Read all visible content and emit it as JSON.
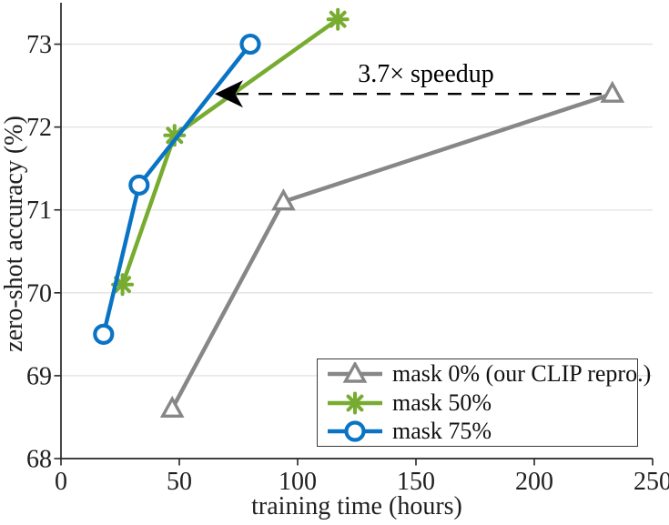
{
  "chart_data": {
    "type": "line",
    "xlabel": "training time (hours)",
    "ylabel": "zero-shot accuracy (%)",
    "xlim": [
      0,
      250
    ],
    "ylim": [
      68,
      73.5
    ],
    "xticks": [
      0,
      50,
      100,
      150,
      200,
      250
    ],
    "yticks": [
      68,
      69,
      70,
      71,
      72,
      73
    ],
    "grid": "horizontal-only",
    "legend_position": "lower-right",
    "series": [
      {
        "name": "mask 0% (our CLIP repro.)",
        "color": "#878787",
        "marker": "triangle",
        "x": [
          47,
          94,
          233
        ],
        "y": [
          68.6,
          71.1,
          72.4
        ]
      },
      {
        "name": "mask 50%",
        "color": "#77ac30",
        "marker": "asterisk",
        "x": [
          26,
          48,
          117
        ],
        "y": [
          70.1,
          71.9,
          73.3
        ]
      },
      {
        "name": "mask 75%",
        "color": "#0a74c4",
        "marker": "circle",
        "x": [
          18,
          33,
          80
        ],
        "y": [
          69.5,
          71.3,
          73.0
        ]
      }
    ],
    "annotation": {
      "text": "3.7× speedup",
      "y": 72.4,
      "arrow_tip_x": 65,
      "line_end_x": 233,
      "style": "dashed-black-left-arrow"
    }
  },
  "colors": {
    "background": "#ffffff",
    "axis": "#262626",
    "grid": "#e2e2e2",
    "tick_text": "#1f1f1f",
    "annotation": "#000000",
    "legend_border": "#3a3a3a"
  }
}
